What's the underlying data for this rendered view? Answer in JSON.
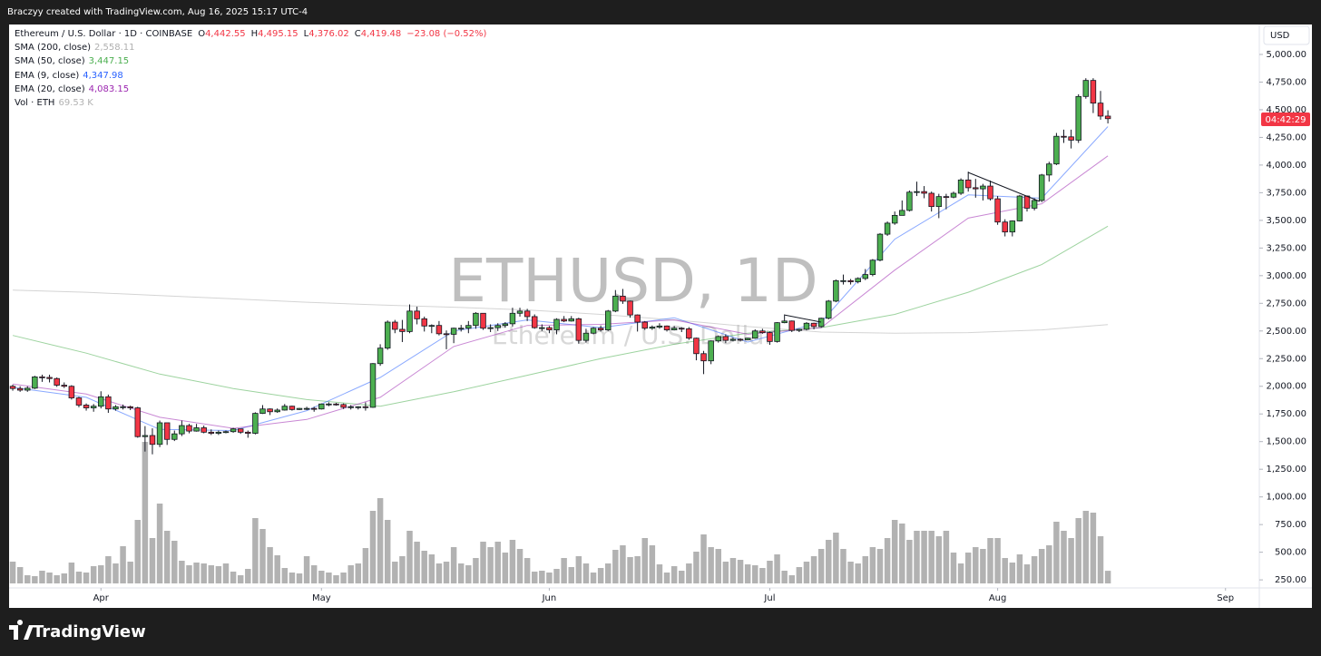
{
  "header": {
    "creator": "Braczyy created with TradingView.com, Aug 16, 2025 15:17 UTC-4"
  },
  "footer": {
    "brand": "TradingView"
  },
  "chart_data": {
    "type": "candlestick",
    "symbol_title": "Ethereum / U.S. Dollar · 1D · COINBASE",
    "ohlc_labels": [
      {
        "key": "O",
        "value": "4,442.55"
      },
      {
        "key": "H",
        "value": "4,495.15"
      },
      {
        "key": "L",
        "value": "4,376.02"
      },
      {
        "key": "C",
        "value": "4,419.48"
      }
    ],
    "change_label": "−23.08 (−0.52%)",
    "watermark": "ETHUSD, 1D",
    "watermark_subtitle": "Ethereum / U.S. Dollar",
    "currency": "USD",
    "countdown": "04:42:29",
    "up_color": "#4caf50",
    "down_color": "#f23645",
    "open": [
      2000,
      1980,
      1965,
      1983,
      2085,
      2080,
      2070,
      2010,
      2000,
      1895,
      1830,
      1805,
      1820,
      1905,
      1795,
      1815,
      1815,
      1805,
      1545,
      1555,
      1475,
      1670,
      1520,
      1570,
      1645,
      1595,
      1625,
      1585,
      1575,
      1585,
      1590,
      1615,
      1585,
      1575,
      1755,
      1795,
      1770,
      1785,
      1820,
      1790,
      1800,
      1800,
      1795,
      1840,
      1840,
      1835,
      1810,
      1815,
      1815,
      1810,
      2205,
      2345,
      2580,
      2515,
      2495,
      2680,
      2610,
      2545,
      2550,
      2475,
      2470,
      2525,
      2525,
      2550,
      2660,
      2525,
      2530,
      2550,
      2565,
      2660,
      2680,
      2630,
      2530,
      2530,
      2510,
      2605,
      2590,
      2610,
      2415,
      2480,
      2525,
      2510,
      2680,
      2815,
      2770,
      2645,
      2580,
      2525,
      2535,
      2545,
      2510,
      2525,
      2520,
      2435,
      2295,
      2230,
      2410,
      2450,
      2415,
      2425,
      2420,
      2435,
      2500,
      2485,
      2405,
      2575,
      2590,
      2505,
      2515,
      2570,
      2540,
      2615,
      2770,
      2955,
      2955,
      2945,
      2975,
      3010,
      3140,
      3375,
      3475,
      3545,
      3590,
      3755,
      3760,
      3745,
      3625,
      3715,
      3710,
      3745,
      3865,
      3795,
      3785,
      3810,
      3695,
      3485,
      3395,
      3495,
      3720,
      3610,
      3680,
      3910,
      4010,
      4260,
      4255,
      4225,
      4620,
      4765,
      4560,
      4442.55
    ],
    "high": [
      2015,
      2000,
      2000,
      2095,
      2105,
      2105,
      2080,
      2035,
      2010,
      1905,
      1845,
      1840,
      1955,
      1925,
      1830,
      1835,
      1825,
      1815,
      1640,
      1620,
      1690,
      1670,
      1600,
      1690,
      1660,
      1660,
      1645,
      1610,
      1600,
      1600,
      1625,
      1615,
      1600,
      1765,
      1830,
      1800,
      1800,
      1840,
      1825,
      1805,
      1815,
      1815,
      1845,
      1855,
      1850,
      1845,
      1830,
      1820,
      1855,
      2210,
      2380,
      2595,
      2600,
      2600,
      2740,
      2720,
      2630,
      2560,
      2590,
      2505,
      2530,
      2555,
      2590,
      2670,
      2660,
      2560,
      2570,
      2580,
      2710,
      2710,
      2700,
      2650,
      2560,
      2545,
      2615,
      2635,
      2635,
      2620,
      2520,
      2535,
      2550,
      2690,
      2870,
      2880,
      2775,
      2650,
      2590,
      2550,
      2570,
      2550,
      2545,
      2535,
      2535,
      2440,
      2320,
      2415,
      2460,
      2470,
      2440,
      2435,
      2440,
      2515,
      2520,
      2495,
      2580,
      2640,
      2595,
      2520,
      2580,
      2575,
      2620,
      2780,
      2965,
      3010,
      2970,
      2985,
      3060,
      3150,
      3385,
      3490,
      3580,
      3680,
      3770,
      3850,
      3810,
      3760,
      3740,
      3740,
      3760,
      3880,
      3940,
      3875,
      3830,
      3860,
      3720,
      3510,
      3500,
      3730,
      3725,
      3700,
      3920,
      4030,
      4290,
      4320,
      4320,
      4640,
      4785,
      4785,
      4670,
      4495.15
    ],
    "low": [
      1960,
      1950,
      1950,
      1975,
      2040,
      2035,
      1995,
      1985,
      1880,
      1810,
      1780,
      1770,
      1800,
      1760,
      1780,
      1790,
      1785,
      1535,
      1410,
      1385,
      1450,
      1470,
      1505,
      1550,
      1575,
      1590,
      1575,
      1560,
      1560,
      1575,
      1580,
      1570,
      1535,
      1565,
      1750,
      1740,
      1760,
      1780,
      1780,
      1785,
      1785,
      1770,
      1790,
      1820,
      1825,
      1795,
      1790,
      1790,
      1780,
      1805,
      2185,
      2330,
      2480,
      2400,
      2480,
      2560,
      2495,
      2480,
      2460,
      2335,
      2390,
      2495,
      2480,
      2520,
      2510,
      2490,
      2500,
      2530,
      2540,
      2630,
      2590,
      2520,
      2500,
      2480,
      2470,
      2580,
      2585,
      2385,
      2395,
      2470,
      2495,
      2500,
      2670,
      2745,
      2620,
      2495,
      2510,
      2510,
      2520,
      2495,
      2505,
      2490,
      2420,
      2235,
      2110,
      2200,
      2395,
      2390,
      2405,
      2405,
      2415,
      2430,
      2475,
      2375,
      2395,
      2570,
      2490,
      2490,
      2505,
      2515,
      2530,
      2605,
      2760,
      2920,
      2920,
      2930,
      2960,
      2995,
      3130,
      3360,
      3460,
      3545,
      3580,
      3720,
      3700,
      3580,
      3520,
      3600,
      3700,
      3730,
      3760,
      3705,
      3680,
      3680,
      3460,
      3355,
      3355,
      3490,
      3580,
      3590,
      3665,
      3850,
      4000,
      4200,
      4150,
      4200,
      4600,
      4470,
      4410,
      4376.02
    ],
    "close": [
      1980,
      1965,
      1983,
      2085,
      2080,
      2070,
      2010,
      2000,
      1895,
      1830,
      1805,
      1820,
      1905,
      1795,
      1815,
      1815,
      1805,
      1545,
      1555,
      1475,
      1670,
      1520,
      1570,
      1645,
      1595,
      1625,
      1585,
      1575,
      1585,
      1590,
      1615,
      1585,
      1575,
      1755,
      1795,
      1770,
      1785,
      1820,
      1790,
      1800,
      1800,
      1795,
      1840,
      1840,
      1835,
      1810,
      1815,
      1815,
      1810,
      2205,
      2345,
      2580,
      2515,
      2495,
      2680,
      2610,
      2545,
      2550,
      2475,
      2470,
      2525,
      2525,
      2550,
      2660,
      2525,
      2530,
      2550,
      2565,
      2660,
      2680,
      2630,
      2530,
      2530,
      2510,
      2605,
      2590,
      2610,
      2415,
      2480,
      2525,
      2510,
      2680,
      2815,
      2770,
      2645,
      2580,
      2525,
      2535,
      2545,
      2510,
      2525,
      2520,
      2435,
      2295,
      2230,
      2410,
      2450,
      2415,
      2425,
      2420,
      2435,
      2500,
      2485,
      2405,
      2575,
      2590,
      2505,
      2515,
      2570,
      2540,
      2615,
      2770,
      2955,
      2955,
      2945,
      2975,
      3010,
      3140,
      3375,
      3475,
      3545,
      3590,
      3755,
      3760,
      3745,
      3625,
      3715,
      3710,
      3745,
      3865,
      3795,
      3785,
      3810,
      3695,
      3485,
      3395,
      3495,
      3720,
      3610,
      3680,
      3910,
      4010,
      4260,
      4255,
      4225,
      4620,
      4765,
      4560,
      4442.55,
      4419.48
    ],
    "volume": {
      "name": "Vol · ETH",
      "value_label": "69.53 K",
      "color": "#b2b2b2",
      "values": [
        120,
        90,
        45,
        40,
        70,
        60,
        45,
        55,
        115,
        65,
        60,
        95,
        100,
        150,
        110,
        205,
        120,
        350,
        780,
        250,
        440,
        290,
        235,
        125,
        100,
        115,
        110,
        100,
        95,
        110,
        65,
        45,
        80,
        360,
        300,
        200,
        155,
        85,
        60,
        55,
        150,
        100,
        70,
        60,
        45,
        60,
        100,
        110,
        195,
        400,
        470,
        350,
        120,
        150,
        290,
        230,
        180,
        160,
        110,
        120,
        200,
        110,
        100,
        140,
        230,
        200,
        230,
        170,
        240,
        190,
        140,
        65,
        70,
        60,
        80,
        140,
        90,
        150,
        110,
        60,
        85,
        110,
        185,
        210,
        145,
        150,
        250,
        210,
        105,
        60,
        95,
        70,
        110,
        175,
        270,
        200,
        190,
        120,
        140,
        130,
        105,
        100,
        85,
        125,
        160,
        70,
        45,
        90,
        120,
        150,
        190,
        240,
        280,
        190,
        120,
        110,
        150,
        200,
        190,
        250,
        350,
        330,
        240,
        290,
        290,
        290,
        260,
        290,
        170,
        110,
        170,
        200,
        190,
        250,
        250,
        140,
        115,
        160,
        105,
        150,
        190,
        210,
        340,
        290,
        250,
        360,
        400,
        390,
        260,
        69.53
      ]
    },
    "indicators": [
      {
        "name": "SMA (200, close)",
        "value_label": "2,558.11",
        "color": "#b0b0b0",
        "x": [
          0,
          10,
          20,
          30,
          40,
          50,
          60,
          70,
          80,
          90,
          100,
          110,
          120,
          130,
          140,
          149
        ],
        "values": [
          2870,
          2850,
          2820,
          2790,
          2760,
          2735,
          2715,
          2690,
          2650,
          2600,
          2540,
          2490,
          2480,
          2485,
          2510,
          2558.11
        ]
      },
      {
        "name": "SMA (50, close)",
        "value_label": "3,447.15",
        "color": "#4caf50",
        "x": [
          0,
          10,
          20,
          30,
          40,
          50,
          60,
          70,
          80,
          90,
          100,
          110,
          120,
          130,
          140,
          149
        ],
        "values": [
          2460,
          2300,
          2110,
          1980,
          1880,
          1820,
          1950,
          2100,
          2250,
          2380,
          2480,
          2530,
          2650,
          2850,
          3100,
          3447.15
        ]
      },
      {
        "name": "EMA (9, close)",
        "value_label": "4,347.98",
        "color": "#2962ff",
        "x": [
          0,
          10,
          20,
          30,
          40,
          50,
          60,
          70,
          80,
          90,
          100,
          110,
          120,
          130,
          140,
          149
        ],
        "values": [
          1990,
          1900,
          1610,
          1600,
          1780,
          2080,
          2500,
          2600,
          2530,
          2620,
          2400,
          2580,
          3330,
          3730,
          3700,
          4347.98
        ]
      },
      {
        "name": "EMA (20, close)",
        "value_label": "4,083.15",
        "color": "#9c27b0",
        "x": [
          0,
          10,
          20,
          30,
          40,
          50,
          60,
          70,
          80,
          90,
          100,
          110,
          120,
          130,
          140,
          149
        ],
        "values": [
          2020,
          1930,
          1720,
          1620,
          1700,
          1900,
          2360,
          2550,
          2560,
          2600,
          2470,
          2530,
          3050,
          3520,
          3650,
          4083.15
        ]
      }
    ],
    "xlim": [
      -0.5,
      169.6
    ],
    "xticks": [
      {
        "value": 12,
        "label": "Apr"
      },
      {
        "value": 42,
        "label": "May"
      },
      {
        "value": 73,
        "label": "Jun"
      },
      {
        "value": 103,
        "label": "Jul"
      },
      {
        "value": 134,
        "label": "Aug"
      },
      {
        "value": 165,
        "label": "Sep"
      }
    ],
    "ylim": [
      177,
      5246
    ],
    "yticks": [
      {
        "value": 250,
        "label": "250.00"
      },
      {
        "value": 500,
        "label": "500.00"
      },
      {
        "value": 750,
        "label": "750.00"
      },
      {
        "value": 1000,
        "label": "1,000.00"
      },
      {
        "value": 1250,
        "label": "1,250.00"
      },
      {
        "value": 1500,
        "label": "1,500.00"
      },
      {
        "value": 1750,
        "label": "1,750.00"
      },
      {
        "value": 2000,
        "label": "2,000.00"
      },
      {
        "value": 2250,
        "label": "2,250.00"
      },
      {
        "value": 2500,
        "label": "2,500.00"
      },
      {
        "value": 2750,
        "label": "2,750.00"
      },
      {
        "value": 3000,
        "label": "3,000.00"
      },
      {
        "value": 3250,
        "label": "3,250.00"
      },
      {
        "value": 3500,
        "label": "3,500.00"
      },
      {
        "value": 3750,
        "label": "3,750.00"
      },
      {
        "value": 4000,
        "label": "4,000.00"
      },
      {
        "value": 4250,
        "label": "4,250.00"
      },
      {
        "value": 4500,
        "label": "4,500.00"
      },
      {
        "value": 4750,
        "label": "4,750.00"
      },
      {
        "value": 5000,
        "label": "5,000.00"
      }
    ]
  }
}
